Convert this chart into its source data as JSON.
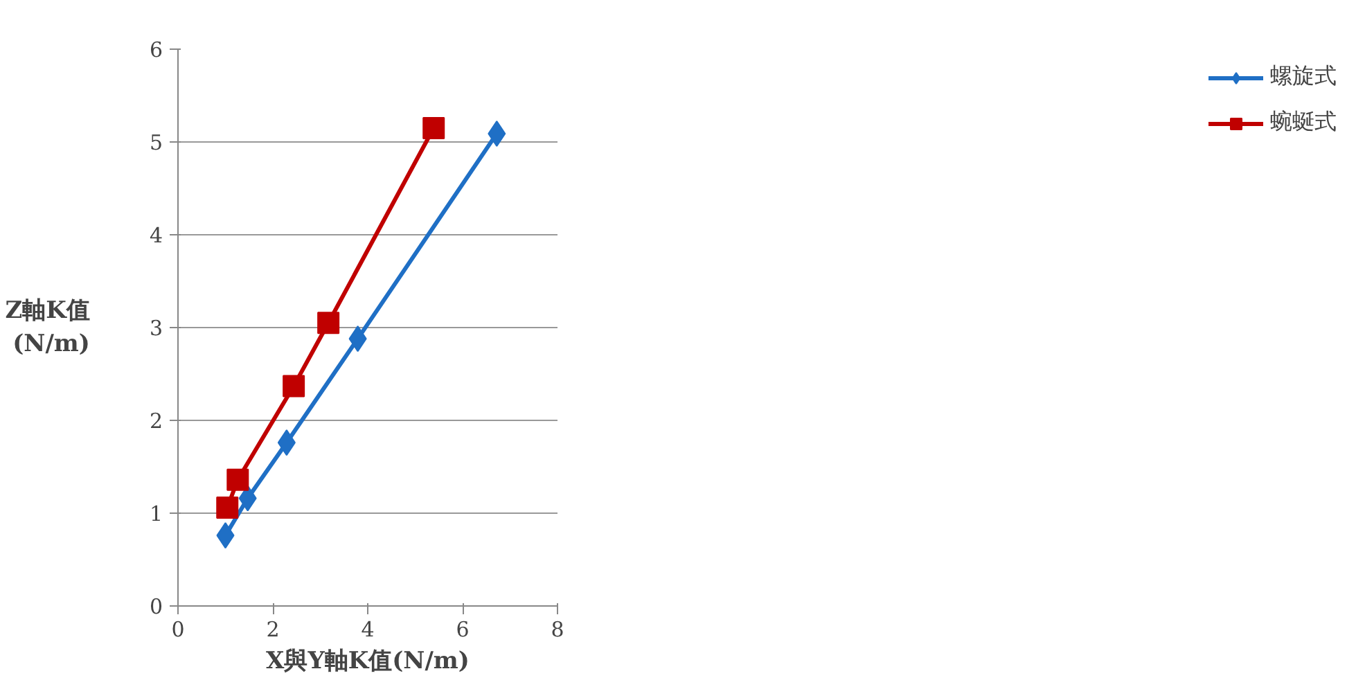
{
  "chart_data": {
    "type": "line",
    "xlabel": "X與Y軸K值(N/m)",
    "ylabel": "Z軸K值\n(N/m)",
    "xlim": [
      0,
      8
    ],
    "xticks": [
      0,
      2,
      4,
      6,
      8
    ],
    "ylim": [
      0,
      6
    ],
    "yticks": [
      0,
      1,
      2,
      3,
      4,
      5,
      6
    ],
    "grid": "y",
    "legend": "right",
    "line_style": "solid",
    "series": [
      {
        "name": "螺旋式",
        "color": "#1f6fc5",
        "marker": "diamond",
        "x": [
          1.0,
          1.47,
          2.29,
          3.79,
          6.72
        ],
        "values": [
          0.76,
          1.16,
          1.76,
          2.88,
          5.09
        ]
      },
      {
        "name": "蜿蜒式",
        "color": "#c00000",
        "marker": "square",
        "x": [
          1.04,
          1.26,
          2.44,
          3.17,
          5.39
        ],
        "values": [
          1.06,
          1.36,
          2.37,
          3.05,
          5.15
        ]
      }
    ]
  }
}
